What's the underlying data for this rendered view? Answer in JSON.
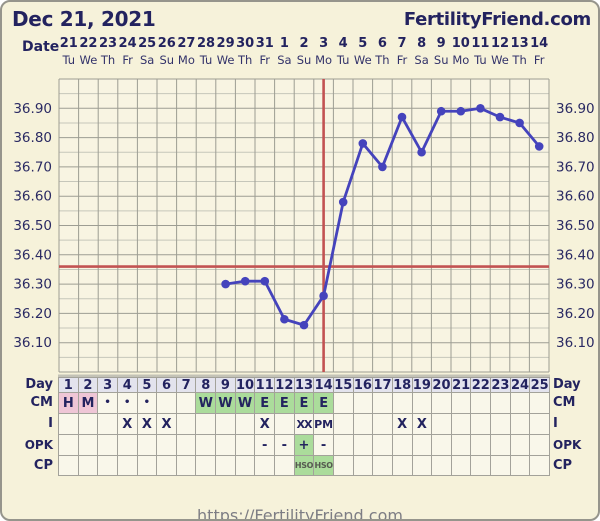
{
  "header": {
    "title": "Dec 21, 2021",
    "brand": "FertilityFriend.com"
  },
  "date_header": {
    "label": "Date",
    "dates": [
      "21",
      "22",
      "23",
      "24",
      "25",
      "26",
      "27",
      "28",
      "29",
      "30",
      "31",
      "1",
      "2",
      "3",
      "4",
      "5",
      "6",
      "7",
      "8",
      "9",
      "10",
      "11",
      "12",
      "13",
      "14"
    ],
    "weekdays": [
      "Tu",
      "We",
      "Th",
      "Fr",
      "Sa",
      "Su",
      "Mo",
      "Tu",
      "We",
      "Th",
      "Fr",
      "Sa",
      "Su",
      "Mo",
      "Tu",
      "We",
      "Th",
      "Fr",
      "Sa",
      "Su",
      "Mo",
      "Tu",
      "We",
      "Th",
      "Fr"
    ]
  },
  "chart_data": {
    "type": "line",
    "num_days": 25,
    "ylim": [
      36.0,
      37.0
    ],
    "yticks": [
      36.9,
      36.8,
      36.7,
      36.6,
      36.5,
      36.4,
      36.3,
      36.2,
      36.1
    ],
    "grid_step": 0.05,
    "legend": "none",
    "series": [
      {
        "name": "basal-body-temperature",
        "points": [
          {
            "day": 9,
            "temp": 36.3
          },
          {
            "day": 10,
            "temp": 36.31
          },
          {
            "day": 11,
            "temp": 36.31
          },
          {
            "day": 12,
            "temp": 36.18
          },
          {
            "day": 13,
            "temp": 36.16
          },
          {
            "day": 14,
            "temp": 36.26
          },
          {
            "day": 15,
            "temp": 36.58
          },
          {
            "day": 16,
            "temp": 36.78
          },
          {
            "day": 17,
            "temp": 36.7
          },
          {
            "day": 18,
            "temp": 36.87
          },
          {
            "day": 19,
            "temp": 36.75
          },
          {
            "day": 20,
            "temp": 36.89
          },
          {
            "day": 21,
            "temp": 36.89
          },
          {
            "day": 22,
            "temp": 36.9
          },
          {
            "day": 23,
            "temp": 36.87
          },
          {
            "day": 24,
            "temp": 36.85
          },
          {
            "day": 25,
            "temp": 36.77
          }
        ]
      }
    ],
    "coverline_temp": 36.36,
    "ovulation_day": 14
  },
  "table": {
    "rows": [
      {
        "label": "Day",
        "cells": [
          {
            "t": "1",
            "bg": "day"
          },
          {
            "t": "2",
            "bg": "day"
          },
          {
            "t": "3",
            "bg": "day"
          },
          {
            "t": "4",
            "bg": "day"
          },
          {
            "t": "5",
            "bg": "day"
          },
          {
            "t": "6",
            "bg": "day"
          },
          {
            "t": "7",
            "bg": "day"
          },
          {
            "t": "8",
            "bg": "day"
          },
          {
            "t": "9",
            "bg": "day"
          },
          {
            "t": "10",
            "bg": "day"
          },
          {
            "t": "11",
            "bg": "day"
          },
          {
            "t": "12",
            "bg": "day"
          },
          {
            "t": "13",
            "bg": "day"
          },
          {
            "t": "14",
            "bg": "day"
          },
          {
            "t": "15",
            "bg": "day"
          },
          {
            "t": "16",
            "bg": "day"
          },
          {
            "t": "17",
            "bg": "day"
          },
          {
            "t": "18",
            "bg": "day"
          },
          {
            "t": "19",
            "bg": "day"
          },
          {
            "t": "20",
            "bg": "day"
          },
          {
            "t": "21",
            "bg": "day"
          },
          {
            "t": "22",
            "bg": "day"
          },
          {
            "t": "23",
            "bg": "day"
          },
          {
            "t": "24",
            "bg": "day"
          },
          {
            "t": "25",
            "bg": "day"
          }
        ]
      },
      {
        "label": "CM",
        "cells": [
          {
            "t": "H",
            "bg": "pink"
          },
          {
            "t": "M",
            "bg": "pink"
          },
          {
            "t": "•"
          },
          {
            "t": "•"
          },
          {
            "t": "•"
          },
          {
            "t": ""
          },
          {
            "t": ""
          },
          {
            "t": "W",
            "bg": "green"
          },
          {
            "t": "W",
            "bg": "green"
          },
          {
            "t": "W",
            "bg": "green"
          },
          {
            "t": "E",
            "bg": "green"
          },
          {
            "t": "E",
            "bg": "green"
          },
          {
            "t": "E",
            "bg": "green"
          },
          {
            "t": "E",
            "bg": "green"
          },
          {
            "t": ""
          },
          {
            "t": ""
          },
          {
            "t": ""
          },
          {
            "t": ""
          },
          {
            "t": ""
          },
          {
            "t": ""
          },
          {
            "t": ""
          },
          {
            "t": ""
          },
          {
            "t": ""
          },
          {
            "t": ""
          },
          {
            "t": ""
          }
        ]
      },
      {
        "label": "I",
        "cells": [
          {
            "t": ""
          },
          {
            "t": ""
          },
          {
            "t": ""
          },
          {
            "t": "X"
          },
          {
            "t": "X"
          },
          {
            "t": "X"
          },
          {
            "t": ""
          },
          {
            "t": ""
          },
          {
            "t": ""
          },
          {
            "t": ""
          },
          {
            "t": "X"
          },
          {
            "t": ""
          },
          {
            "t": "XX"
          },
          {
            "t": "PM"
          },
          {
            "t": ""
          },
          {
            "t": ""
          },
          {
            "t": ""
          },
          {
            "t": "X"
          },
          {
            "t": "X"
          },
          {
            "t": ""
          },
          {
            "t": ""
          },
          {
            "t": ""
          },
          {
            "t": ""
          },
          {
            "t": ""
          },
          {
            "t": ""
          }
        ]
      },
      {
        "label": "OPK",
        "cells": [
          {
            "t": ""
          },
          {
            "t": ""
          },
          {
            "t": ""
          },
          {
            "t": ""
          },
          {
            "t": ""
          },
          {
            "t": ""
          },
          {
            "t": ""
          },
          {
            "t": ""
          },
          {
            "t": ""
          },
          {
            "t": ""
          },
          {
            "t": "-"
          },
          {
            "t": "-"
          },
          {
            "t": "+",
            "bg": "green"
          },
          {
            "t": "-"
          },
          {
            "t": ""
          },
          {
            "t": ""
          },
          {
            "t": ""
          },
          {
            "t": ""
          },
          {
            "t": ""
          },
          {
            "t": ""
          },
          {
            "t": ""
          },
          {
            "t": ""
          },
          {
            "t": ""
          },
          {
            "t": ""
          },
          {
            "t": ""
          }
        ]
      },
      {
        "label": "CP",
        "cells": [
          {
            "t": ""
          },
          {
            "t": ""
          },
          {
            "t": ""
          },
          {
            "t": ""
          },
          {
            "t": ""
          },
          {
            "t": ""
          },
          {
            "t": ""
          },
          {
            "t": ""
          },
          {
            "t": ""
          },
          {
            "t": ""
          },
          {
            "t": ""
          },
          {
            "t": ""
          },
          {
            "t": "HSO",
            "bg": "green"
          },
          {
            "t": "HSO",
            "bg": "green"
          },
          {
            "t": ""
          },
          {
            "t": ""
          },
          {
            "t": ""
          },
          {
            "t": ""
          },
          {
            "t": ""
          },
          {
            "t": ""
          },
          {
            "t": ""
          },
          {
            "t": ""
          },
          {
            "t": ""
          },
          {
            "t": ""
          },
          {
            "t": ""
          }
        ]
      }
    ]
  },
  "footer": {
    "url": "https://FertilityFriend.com"
  },
  "colors": {
    "navy": "#23235f",
    "line_blue": "#4543bc",
    "red_line": "#c25252",
    "pink_cell": "#efc6d6",
    "green_cell": "#abdc9b",
    "day_cell": "#e3e3ed",
    "card_bg": "#f6f2da",
    "grid_major": "#9d9d93",
    "grid_minor": "#c6c6ba"
  }
}
